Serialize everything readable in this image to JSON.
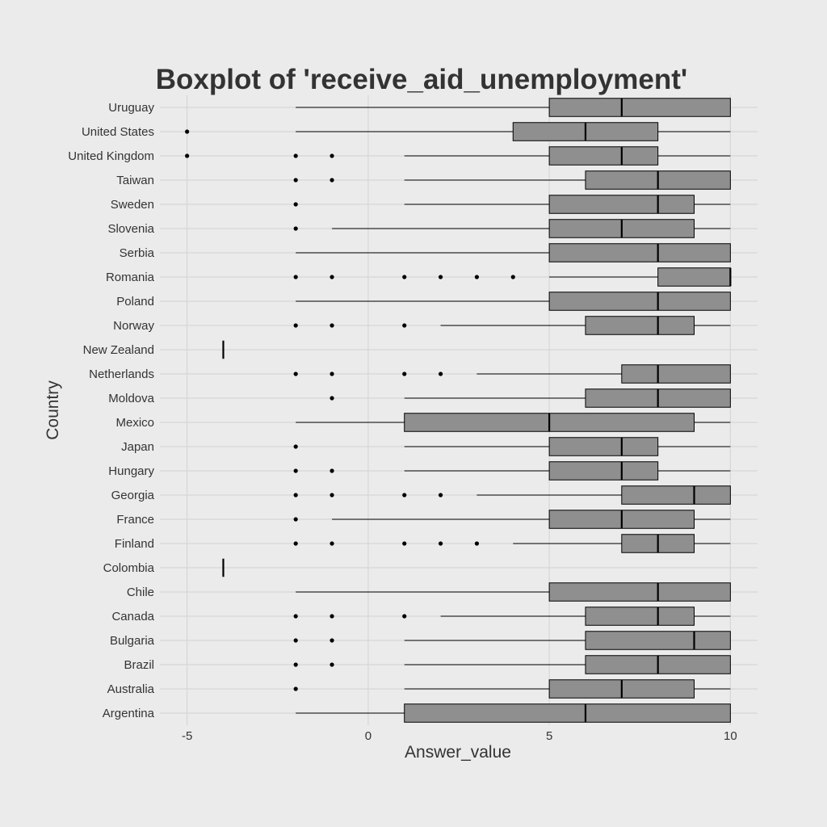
{
  "chart_data": {
    "type": "boxplot",
    "title": "Boxplot of 'receive_aid_unemployment'",
    "xlabel": "Answer_value",
    "ylabel": "Country",
    "xlim": [
      -5.75,
      10.75
    ],
    "xticks": [
      -5,
      0,
      5,
      10
    ],
    "grid": true,
    "colors": {
      "background": "#ebebeb",
      "grid": "#d6d6d6",
      "box_fill": "#8f8f8f",
      "line": "#000000",
      "text": "#333333"
    },
    "categories": [
      "Argentina",
      "Australia",
      "Brazil",
      "Bulgaria",
      "Canada",
      "Chile",
      "Colombia",
      "Finland",
      "France",
      "Georgia",
      "Hungary",
      "Japan",
      "Mexico",
      "Moldova",
      "Netherlands",
      "New Zealand",
      "Norway",
      "Poland",
      "Romania",
      "Serbia",
      "Slovenia",
      "Sweden",
      "Taiwan",
      "United Kingdom",
      "United States",
      "Uruguay"
    ],
    "boxes": [
      {
        "lw": -2,
        "q1": 1,
        "median": 6,
        "q3": 10,
        "uw": 10,
        "outliers": []
      },
      {
        "lw": 1,
        "q1": 5,
        "median": 7,
        "q3": 9,
        "uw": 10,
        "outliers": [
          -2
        ]
      },
      {
        "lw": 1,
        "q1": 6,
        "median": 8,
        "q3": 10,
        "uw": 10,
        "outliers": [
          -2,
          -1
        ]
      },
      {
        "lw": 1,
        "q1": 6,
        "median": 9,
        "q3": 10,
        "uw": 10,
        "outliers": [
          -2,
          -1
        ]
      },
      {
        "lw": 2,
        "q1": 6,
        "median": 8,
        "q3": 9,
        "uw": 10,
        "outliers": [
          -2,
          -1,
          1
        ]
      },
      {
        "lw": -2,
        "q1": 5,
        "median": 8,
        "q3": 10,
        "uw": 10,
        "outliers": []
      },
      {
        "lw": -4,
        "q1": -4,
        "median": -4,
        "q3": -4,
        "uw": -4,
        "outliers": []
      },
      {
        "lw": 4,
        "q1": 7,
        "median": 8,
        "q3": 9,
        "uw": 10,
        "outliers": [
          -2,
          -1,
          1,
          2,
          3
        ]
      },
      {
        "lw": -1,
        "q1": 5,
        "median": 7,
        "q3": 9,
        "uw": 10,
        "outliers": [
          -2
        ]
      },
      {
        "lw": 3,
        "q1": 7,
        "median": 9,
        "q3": 10,
        "uw": 10,
        "outliers": [
          -2,
          -1,
          1,
          2
        ]
      },
      {
        "lw": 1,
        "q1": 5,
        "median": 7,
        "q3": 8,
        "uw": 10,
        "outliers": [
          -2,
          -1
        ]
      },
      {
        "lw": 1,
        "q1": 5,
        "median": 7,
        "q3": 8,
        "uw": 10,
        "outliers": [
          -2
        ]
      },
      {
        "lw": -2,
        "q1": 1,
        "median": 5,
        "q3": 9,
        "uw": 10,
        "outliers": []
      },
      {
        "lw": 1,
        "q1": 6,
        "median": 8,
        "q3": 10,
        "uw": 10,
        "outliers": [
          -1
        ]
      },
      {
        "lw": 3,
        "q1": 7,
        "median": 8,
        "q3": 10,
        "uw": 10,
        "outliers": [
          -2,
          -1,
          1,
          2
        ]
      },
      {
        "lw": -4,
        "q1": -4,
        "median": -4,
        "q3": -4,
        "uw": -4,
        "outliers": []
      },
      {
        "lw": 2,
        "q1": 6,
        "median": 8,
        "q3": 9,
        "uw": 10,
        "outliers": [
          -2,
          -1,
          1
        ]
      },
      {
        "lw": -2,
        "q1": 5,
        "median": 8,
        "q3": 10,
        "uw": 10,
        "outliers": []
      },
      {
        "lw": 5,
        "q1": 8,
        "median": 10,
        "q3": 10,
        "uw": 10,
        "outliers": [
          -2,
          -1,
          1,
          2,
          3,
          4
        ]
      },
      {
        "lw": -2,
        "q1": 5,
        "median": 8,
        "q3": 10,
        "uw": 10,
        "outliers": []
      },
      {
        "lw": -1,
        "q1": 5,
        "median": 7,
        "q3": 9,
        "uw": 10,
        "outliers": [
          -2
        ]
      },
      {
        "lw": 1,
        "q1": 5,
        "median": 8,
        "q3": 9,
        "uw": 10,
        "outliers": [
          -2
        ]
      },
      {
        "lw": 1,
        "q1": 6,
        "median": 8,
        "q3": 10,
        "uw": 10,
        "outliers": [
          -2,
          -1
        ]
      },
      {
        "lw": 1,
        "q1": 5,
        "median": 7,
        "q3": 8,
        "uw": 10,
        "outliers": [
          -5,
          -2,
          -1
        ]
      },
      {
        "lw": -2,
        "q1": 4,
        "median": 6,
        "q3": 8,
        "uw": 10,
        "outliers": [
          -5
        ]
      },
      {
        "lw": -2,
        "q1": 5,
        "median": 7,
        "q3": 10,
        "uw": 10,
        "outliers": []
      }
    ]
  }
}
